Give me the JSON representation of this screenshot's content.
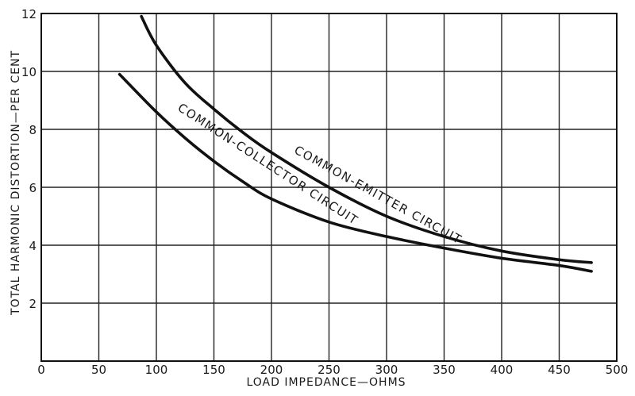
{
  "chart_data": {
    "type": "line",
    "xlabel": "LOAD IMPEDANCE—OHMS",
    "ylabel": "TOTAL HARMONIC DISTORTION—PER CENT",
    "xlim": [
      0,
      500
    ],
    "ylim": [
      0,
      12
    ],
    "xticks": [
      "0",
      "50",
      "100",
      "150",
      "200",
      "250",
      "300",
      "350",
      "400",
      "450",
      "500"
    ],
    "yticks": [
      "2",
      "4",
      "6",
      "8",
      "10",
      "12"
    ],
    "grid": true,
    "series": [
      {
        "name": "COMMON-EMITTER CIRCUIT",
        "x": [
          87,
          100,
          125,
          150,
          175,
          200,
          250,
          300,
          350,
          400,
          450,
          478
        ],
        "y": [
          11.9,
          10.9,
          9.6,
          8.7,
          7.9,
          7.2,
          6.0,
          5.0,
          4.3,
          3.8,
          3.5,
          3.4
        ]
      },
      {
        "name": "COMMON-COLLECTOR CIRCUIT",
        "x": [
          68,
          100,
          125,
          150,
          175,
          200,
          250,
          300,
          350,
          400,
          450,
          478
        ],
        "y": [
          9.9,
          8.6,
          7.7,
          6.9,
          6.2,
          5.6,
          4.8,
          4.3,
          3.9,
          3.55,
          3.3,
          3.1
        ]
      }
    ]
  }
}
